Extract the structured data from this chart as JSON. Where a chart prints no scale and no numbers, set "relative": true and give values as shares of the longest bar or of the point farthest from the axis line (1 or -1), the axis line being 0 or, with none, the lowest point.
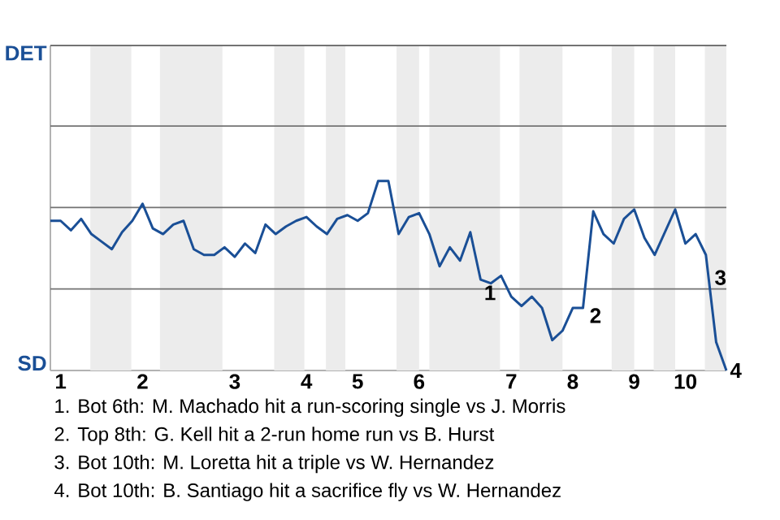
{
  "chart_data": {
    "type": "line",
    "relative": true,
    "categories": [
      null,
      "1",
      null,
      null,
      null,
      null,
      null,
      null,
      null,
      "2",
      null,
      null,
      null,
      null,
      null,
      null,
      null,
      null,
      "3",
      null,
      null,
      null,
      null,
      null,
      null,
      "4",
      null,
      null,
      null,
      null,
      "5",
      null,
      null,
      null,
      null,
      null,
      "6",
      null,
      null,
      null,
      null,
      null,
      null,
      null,
      null,
      "7",
      null,
      null,
      null,
      null,
      null,
      "8",
      null,
      null,
      null,
      null,
      null,
      "9",
      null,
      null,
      null,
      null,
      "10",
      null,
      null,
      null,
      null
    ],
    "series": [
      {
        "color": "#1a4f96",
        "values": [
          0.79,
          0.79,
          0.74,
          0.8,
          0.72,
          0.68,
          0.64,
          0.73,
          0.79,
          0.88,
          0.75,
          0.72,
          0.77,
          0.79,
          0.64,
          0.61,
          0.61,
          0.65,
          0.6,
          0.67,
          0.62,
          0.77,
          0.72,
          0.76,
          0.79,
          0.81,
          0.76,
          0.72,
          0.8,
          0.82,
          0.79,
          0.83,
          1,
          1,
          0.72,
          0.81,
          0.83,
          0.72,
          0.55,
          0.65,
          0.58,
          0.73,
          0.48,
          0.46,
          0.5,
          0.39,
          0.34,
          0.39,
          0.33,
          0.16,
          0.21,
          0.33,
          0.33,
          0.84,
          0.72,
          0.67,
          0.8,
          0.85,
          0.7,
          0.61,
          0.73,
          0.85,
          0.67,
          0.72,
          0.61,
          0.15,
          0
        ]
      }
    ],
    "ref_lines": [
      {
        "axis": "y",
        "value": 0.43,
        "color": "#737373"
      },
      {
        "axis": "y",
        "value": 0.86,
        "color": "#737373"
      },
      {
        "axis": "y",
        "value": 1.29,
        "color": "#737373"
      },
      {
        "axis": "y",
        "value": 1.715,
        "color": "#737373"
      }
    ],
    "annotations": [
      "1",
      "2",
      "3",
      "4",
      "DET",
      "SD",
      "1. Bot 6th: M. Machado hit a run-scoring single vs J. Morris",
      "2. Top 8th: G. Kell hit a 2-run home run vs B. Hurst",
      "3. Bot 10th: M. Loretta hit a triple vs W. Hernandez",
      "4. Bot 10th: B. Santiago hit a sacrifice fly vs W. Hernandez"
    ]
  }
}
